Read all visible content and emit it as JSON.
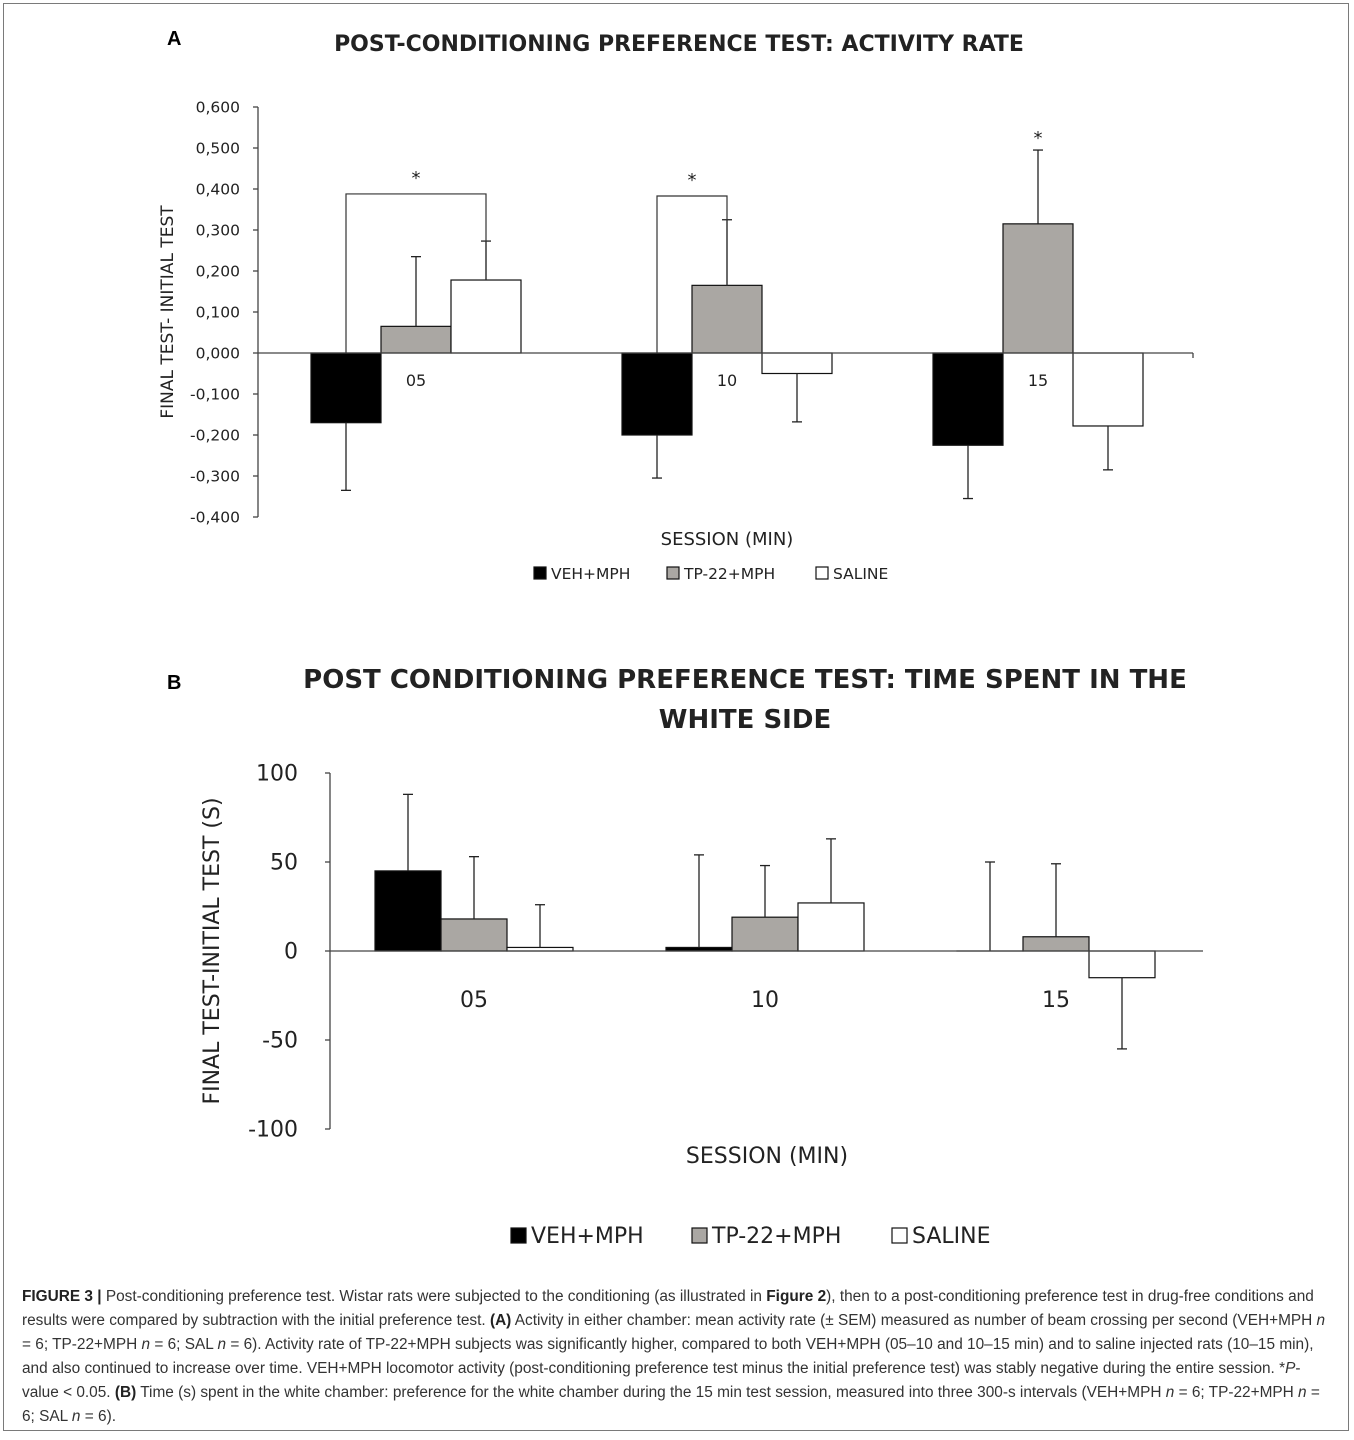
{
  "chart_data": [
    {
      "panel": "A",
      "type": "bar",
      "title": "POST-CONDITIONING PREFERENCE TEST: ACTIVITY RATE",
      "xlabel": "SESSION (MIN)",
      "ylabel": "FINAL TEST-  INITIAL  TEST",
      "categories": [
        "05",
        "10",
        "15"
      ],
      "ylim": [
        -0.4,
        0.6
      ],
      "yticks": [
        {
          "v": 0.6,
          "label": "0,600"
        },
        {
          "v": 0.5,
          "label": "0,500"
        },
        {
          "v": 0.4,
          "label": "0,400"
        },
        {
          "v": 0.3,
          "label": "0,300"
        },
        {
          "v": 0.2,
          "label": "0,200"
        },
        {
          "v": 0.1,
          "label": "0,100"
        },
        {
          "v": 0.0,
          "label": "0,000"
        },
        {
          "v": -0.1,
          "label": "-0,100"
        },
        {
          "v": -0.2,
          "label": "-0,200"
        },
        {
          "v": -0.3,
          "label": "-0,300"
        },
        {
          "v": -0.4,
          "label": "-0,400"
        }
      ],
      "series": [
        {
          "name": "VEH+MPH",
          "color": "#000000",
          "values": [
            -0.17,
            -0.2,
            -0.225
          ],
          "errors": [
            0.165,
            0.105,
            0.13
          ]
        },
        {
          "name": "TP-22+MPH",
          "color": "#aaa7a3",
          "values": [
            0.065,
            0.165,
            0.315
          ],
          "errors": [
            0.17,
            0.16,
            0.18
          ]
        },
        {
          "name": "SALINE",
          "color": "#ffffff",
          "values": [
            0.178,
            -0.05,
            -0.178
          ],
          "errors": [
            0.095,
            0.118,
            0.107
          ]
        }
      ],
      "significance": [
        {
          "type": "bracket",
          "category": "05",
          "label": "*"
        },
        {
          "type": "bracket",
          "category": "10",
          "label": "*"
        },
        {
          "type": "star",
          "category": "15",
          "label": "*"
        }
      ],
      "legend": "bottom"
    },
    {
      "panel": "B",
      "type": "bar",
      "title": "POST CONDITIONING PREFERENCE TEST: TIME SPENT IN THE WHITE SIDE",
      "title_lines": [
        "POST CONDITIONING PREFERENCE TEST: TIME SPENT IN THE",
        "WHITE SIDE"
      ],
      "xlabel": "SESSION (MIN)",
      "ylabel": "FINAL TEST-INITIAL  TEST (S)",
      "categories": [
        "05",
        "10",
        "15"
      ],
      "ylim": [
        -100,
        100
      ],
      "yticks": [
        {
          "v": 100,
          "label": "100"
        },
        {
          "v": 50,
          "label": "50"
        },
        {
          "v": 0,
          "label": "0"
        },
        {
          "v": -50,
          "label": "-50"
        },
        {
          "v": -100,
          "label": "-100"
        }
      ],
      "series": [
        {
          "name": "VEH+MPH",
          "color": "#000000",
          "values": [
            45,
            2,
            0
          ],
          "errors": [
            43,
            52,
            50
          ]
        },
        {
          "name": "TP-22+MPH",
          "color": "#aaa7a3",
          "values": [
            18,
            19,
            8
          ],
          "errors": [
            35,
            29,
            41
          ]
        },
        {
          "name": "SALINE",
          "color": "#ffffff",
          "values": [
            2,
            27,
            -15
          ],
          "errors": [
            24,
            36,
            40
          ]
        }
      ],
      "legend": "bottom"
    }
  ],
  "caption": {
    "figure_label": "FIGURE 3",
    "separator": " | ",
    "intro": "Post-conditioning preference test. Wistar rats were subjected to the conditioning (as illustrated in ",
    "fig_ref": "Figure 2",
    "text_1": "), then to a post-conditioning preference test in drug-free conditions and results were compared by subtraction with the initial preference test. ",
    "label_a": "(A)",
    "text_a": " Activity in either chamber: mean activity rate (± SEM) measured as number of beam crossing per second (VEH+MPH ",
    "n": "n",
    "eq6": " = 6; TP-22+MPH ",
    "eq6b": " = 6; SAL ",
    "text_a2": " = 6). Activity rate of TP-22+MPH subjects was significantly higher, compared to both VEH+MPH (05–10 and 10–15 min) and to saline injected rats (10–15 min), and also continued to increase over time. VEH+MPH locomotor activity (post-conditioning preference test minus the initial preference test) was stably negative during the entire session. *",
    "p": "P",
    "text_a3": "-value < 0.05. ",
    "label_b": "(B)",
    "text_b": " Time (s) spent in the white chamber: preference for the white chamber during the 15 min test session, measured into three 300-s intervals (VEH+MPH ",
    "text_b2": " = 6)."
  }
}
